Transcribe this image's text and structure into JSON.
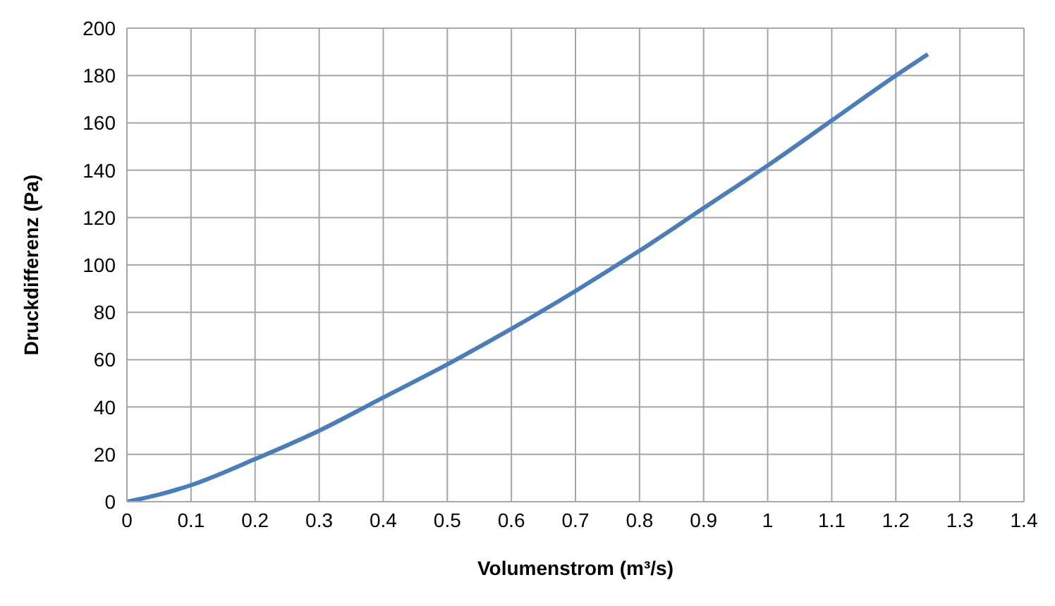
{
  "chart_data": {
    "type": "line",
    "xlabel": "Volumenstrom (m³/s)",
    "ylabel": "Druckdifferenz (Pa)",
    "x": [
      0,
      0.05,
      0.1,
      0.2,
      0.3,
      0.4,
      0.5,
      0.6,
      0.7,
      0.8,
      0.9,
      1.0,
      1.1,
      1.2,
      1.25
    ],
    "series": [
      {
        "color": "#4a7ebb",
        "values": [
          0,
          3,
          7,
          18,
          30,
          44,
          58,
          73,
          89,
          106,
          124,
          142,
          161,
          180,
          189
        ]
      }
    ],
    "xlim": [
      0,
      1.4
    ],
    "xticks": [
      0,
      0.1,
      0.2,
      0.3,
      0.4,
      0.5,
      0.6,
      0.7,
      0.8,
      0.9,
      1,
      1.1,
      1.2,
      1.3,
      1.4
    ],
    "ylim": [
      0,
      200
    ],
    "yticks": [
      0,
      20,
      40,
      60,
      80,
      100,
      120,
      140,
      160,
      180,
      200
    ],
    "grid": true,
    "legend": false,
    "marker": "none",
    "line_style": "solid"
  }
}
